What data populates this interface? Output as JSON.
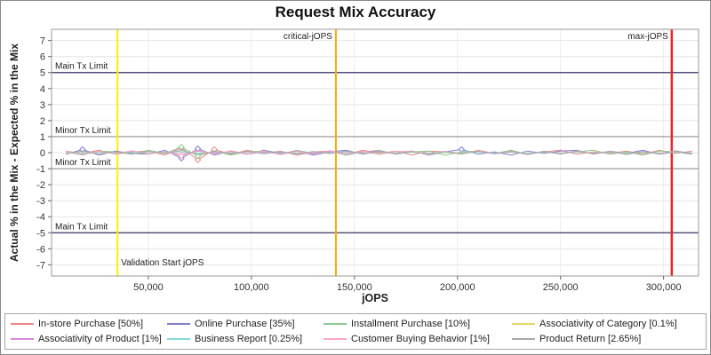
{
  "title": "Request Mix Accuracy",
  "axes": {
    "x_label": "jOPS",
    "y_label": "Actual % in the Mix - Expected % in the Mix",
    "x_ticks": [
      {
        "value": 50000,
        "label": "50,000"
      },
      {
        "value": 100000,
        "label": "100,000"
      },
      {
        "value": 150000,
        "label": "150,000"
      },
      {
        "value": 200000,
        "label": "200,000"
      },
      {
        "value": 250000,
        "label": "250,000"
      },
      {
        "value": 300000,
        "label": "300,000"
      }
    ],
    "y_ticks": [
      7,
      6,
      5,
      4,
      3,
      2,
      1,
      0,
      -1,
      -2,
      -3,
      -4,
      -5,
      -6,
      -7
    ]
  },
  "annotations": {
    "h_lines": [
      {
        "y": 5,
        "label": "Main Tx Limit",
        "color": "#333366"
      },
      {
        "y": 1,
        "label": "Minor Tx Limit",
        "color": "#909090"
      },
      {
        "y": -1,
        "label": "Minor Tx Limit",
        "color": "#909090"
      },
      {
        "y": -5,
        "label": "Main Tx Limit",
        "color": "#333366"
      }
    ],
    "v_lines": [
      {
        "x": 35000,
        "label": "Validation Start jOPS",
        "color": "#ffee00",
        "width": 2,
        "label_pos": "bottom-right"
      },
      {
        "x": 141000,
        "label": "critical-jOPS",
        "color": "#ffaa00",
        "width": 2,
        "label_pos": "top-left"
      },
      {
        "x": 304000,
        "label": "max-jOPS",
        "color": "#ee2222",
        "width": 2.5,
        "label_pos": "top-left"
      }
    ]
  },
  "chart_data": {
    "type": "line",
    "title": "Request Mix Accuracy",
    "xlabel": "jOPS",
    "ylabel": "Actual % in the Mix - Expected % in the Mix",
    "xlim": [
      3000,
      317000
    ],
    "ylim": [
      -7.7,
      7.7
    ],
    "grid": true,
    "legend_position": "bottom",
    "x": [
      10000,
      18000,
      26000,
      34000,
      42000,
      50000,
      58000,
      66000,
      74000,
      82000,
      90000,
      98000,
      106000,
      114000,
      122000,
      130000,
      138000,
      146000,
      154000,
      162000,
      170000,
      178000,
      186000,
      194000,
      202000,
      210000,
      218000,
      226000,
      234000,
      242000,
      250000,
      258000,
      266000,
      274000,
      282000,
      290000,
      298000,
      306000,
      314000
    ],
    "series": [
      {
        "name": "In-store Purchase [50%]",
        "color": "#ee8888",
        "values": [
          0.1,
          -0.05,
          0.15,
          -0.1,
          0.05,
          0.1,
          -0.15,
          0.3,
          -0.45,
          0.2,
          -0.1,
          0.15,
          -0.05,
          0.1,
          -0.15,
          0.05,
          0.1,
          -0.1,
          0.15,
          -0.05,
          0.1,
          -0.15,
          0.1,
          0.05,
          -0.1,
          0.15,
          -0.05,
          0.1,
          -0.1,
          0.05,
          0.15,
          -0.1,
          0.05,
          -0.05,
          0.1,
          -0.1,
          0.15,
          -0.05,
          0.1
        ]
      },
      {
        "name": "Online Purchase [35%]",
        "color": "#8080cc",
        "values": [
          -0.1,
          0.2,
          -0.15,
          0.1,
          -0.05,
          -0.1,
          0.15,
          -0.35,
          0.25,
          -0.15,
          0.1,
          -0.1,
          0.15,
          -0.05,
          0.1,
          -0.15,
          0.05,
          0.15,
          -0.1,
          0.1,
          -0.05,
          0.1,
          -0.15,
          0.05,
          0.2,
          -0.1,
          0.05,
          -0.15,
          0.1,
          -0.05,
          0.1,
          0.15,
          -0.1,
          0.1,
          -0.05,
          0.15,
          -0.1,
          0.05,
          -0.1
        ]
      },
      {
        "name": "Installment Purchase [10%]",
        "color": "#8cc88c",
        "values": [
          0.05,
          -0.15,
          0.1,
          0.05,
          -0.1,
          0.15,
          -0.05,
          0.35,
          -0.2,
          0.1,
          -0.15,
          0.05,
          0.1,
          -0.1,
          0.15,
          -0.05,
          0.1,
          -0.15,
          0.05,
          0.15,
          -0.1,
          0.05,
          0.1,
          -0.15,
          0.05,
          0.1,
          -0.05,
          0.15,
          -0.1,
          0.1,
          -0.05,
          0.05,
          0.15,
          -0.1,
          0.05,
          -0.15,
          0.1,
          0.05,
          -0.05
        ]
      },
      {
        "name": "Associativity of Category [0.1%]",
        "color": "#e8d868",
        "values": [
          0.02,
          -0.03,
          0.04,
          -0.02,
          0.03,
          -0.04,
          0.02,
          0.05,
          -0.05,
          0.03,
          -0.02,
          0.04,
          -0.03,
          0.02,
          -0.04,
          0.03,
          -0.02,
          0.04,
          -0.03,
          0.02,
          -0.02,
          0.03,
          -0.04,
          0.02,
          -0.03,
          0.04,
          -0.02,
          0.03,
          -0.04,
          0.02,
          -0.03,
          0.04,
          -0.02,
          0.03,
          -0.04,
          0.02,
          -0.03,
          0.04,
          -0.02
        ]
      },
      {
        "name": "Associativity of Product [1%]",
        "color": "#d888d8",
        "values": [
          0.05,
          -0.1,
          0.08,
          -0.05,
          0.1,
          -0.08,
          0.05,
          -0.12,
          0.1,
          -0.05,
          0.08,
          -0.1,
          0.05,
          -0.08,
          0.1,
          -0.05,
          0.08,
          -0.1,
          0.05,
          0.1,
          -0.08,
          0.05,
          -0.1,
          0.08,
          -0.05,
          0.1,
          -0.08,
          0.05,
          -0.1,
          0.08,
          -0.05,
          0.1,
          -0.08,
          0.05,
          -0.1,
          0.08,
          -0.05,
          0.1,
          -0.08
        ]
      },
      {
        "name": "Business Report [0.25%]",
        "color": "#88d8d8",
        "values": [
          0.03,
          -0.04,
          0.05,
          -0.03,
          0.04,
          -0.05,
          0.03,
          0.06,
          -0.06,
          0.04,
          -0.03,
          0.05,
          -0.04,
          0.03,
          -0.05,
          0.04,
          -0.03,
          0.05,
          -0.04,
          0.03,
          -0.03,
          0.04,
          -0.05,
          0.03,
          -0.04,
          0.05,
          -0.03,
          0.04,
          -0.05,
          0.03,
          -0.04,
          0.05,
          -0.03,
          0.04,
          -0.05,
          0.03,
          -0.04,
          0.05,
          -0.03
        ]
      },
      {
        "name": "Customer Buying Behavior [1%]",
        "color": "#f8a8c0",
        "values": [
          0.08,
          -0.12,
          0.1,
          -0.08,
          0.12,
          -0.1,
          0.08,
          -0.2,
          0.15,
          -0.1,
          0.12,
          -0.08,
          0.1,
          -0.12,
          0.08,
          -0.1,
          0.12,
          -0.08,
          0.1,
          -0.12,
          0.08,
          0.1,
          -0.12,
          0.08,
          -0.1,
          0.12,
          -0.08,
          0.1,
          -0.12,
          0.08,
          -0.1,
          0.12,
          -0.08,
          0.1,
          -0.12,
          0.08,
          -0.1,
          0.12,
          -0.08
        ]
      },
      {
        "name": "Product Return [2.65%]",
        "color": "#a8a8a8",
        "values": [
          -0.06,
          0.1,
          -0.08,
          0.06,
          -0.1,
          0.08,
          -0.06,
          0.15,
          -0.12,
          0.08,
          -0.06,
          0.1,
          -0.08,
          0.06,
          -0.1,
          0.08,
          -0.06,
          0.1,
          -0.08,
          0.06,
          -0.06,
          0.08,
          -0.1,
          0.06,
          -0.08,
          0.1,
          -0.06,
          0.08,
          -0.1,
          0.06,
          -0.08,
          0.1,
          -0.06,
          0.08,
          -0.1,
          0.06,
          -0.08,
          0.1,
          -0.06
        ]
      }
    ]
  }
}
